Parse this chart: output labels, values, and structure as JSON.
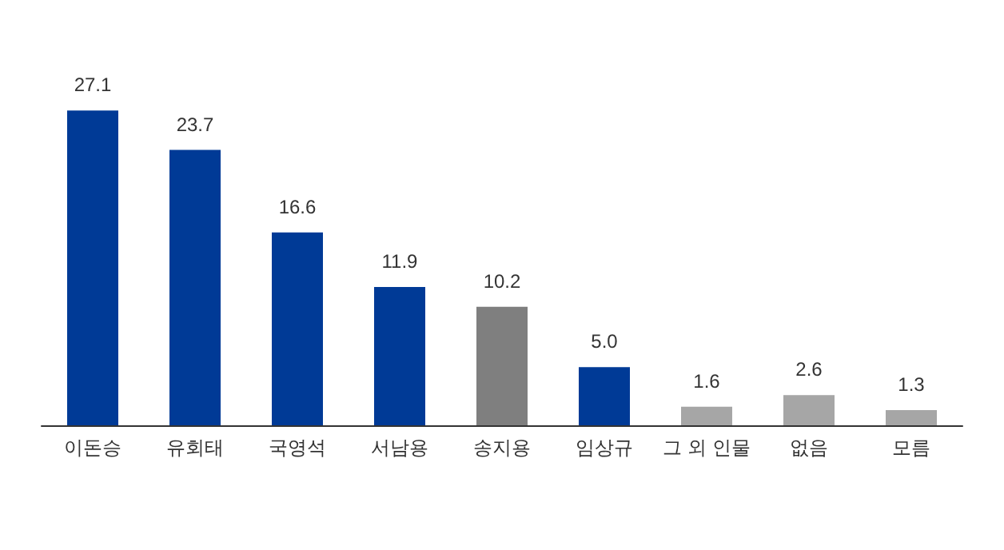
{
  "chart_data": {
    "type": "bar",
    "categories": [
      "이돈승",
      "유회태",
      "국영석",
      "서남용",
      "송지용",
      "임상규",
      "그 외 인물",
      "없음",
      "모름"
    ],
    "values": [
      27.1,
      23.7,
      16.6,
      11.9,
      10.2,
      5.0,
      1.6,
      2.6,
      1.3
    ],
    "value_labels": [
      "27.1",
      "23.7",
      "16.6",
      "11.9",
      "10.2",
      "5.0",
      "1.6",
      "2.6",
      "1.3"
    ],
    "colors": [
      "#003a96",
      "#003a96",
      "#003a96",
      "#003a96",
      "#7f7f7f",
      "#003a96",
      "#a6a6a6",
      "#a6a6a6",
      "#a6a6a6"
    ]
  }
}
